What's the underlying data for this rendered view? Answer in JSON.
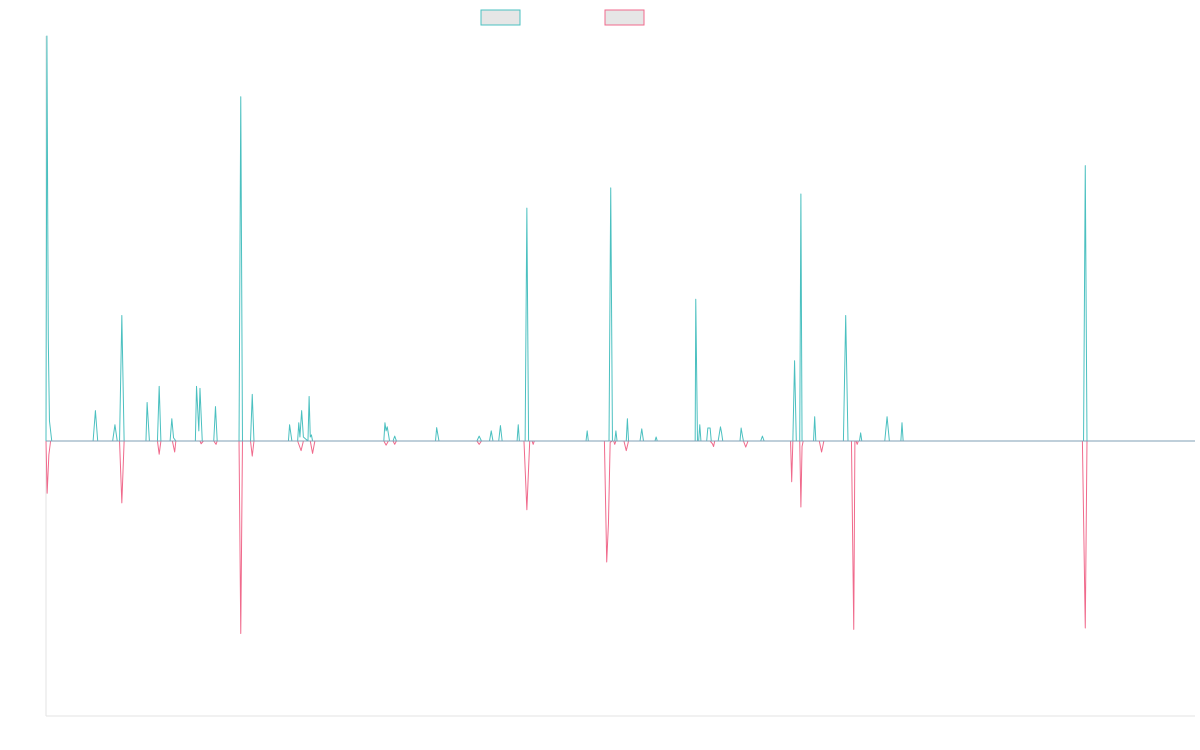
{
  "chart_data": {
    "type": "line",
    "title": "",
    "xlabel": "",
    "ylabel": "",
    "xlim": [
      0,
      1000
    ],
    "ylim": [
      -1.0,
      1.0
    ],
    "grid": false,
    "legend_position": "top-center",
    "series": [
      {
        "color": "#4bc0c0",
        "points": [
          [
            0,
            0
          ],
          [
            0.8,
            1.0
          ],
          [
            2,
            0.25
          ],
          [
            3,
            0.05
          ],
          [
            5,
            0
          ],
          [
            41,
            0
          ],
          [
            43,
            0.075
          ],
          [
            45,
            0
          ],
          [
            58,
            0
          ],
          [
            60,
            0.04
          ],
          [
            62,
            0
          ],
          [
            64,
            0
          ],
          [
            66,
            0.31
          ],
          [
            68,
            0
          ],
          [
            87,
            0
          ],
          [
            88,
            0.095
          ],
          [
            90,
            0
          ],
          [
            97,
            0
          ],
          [
            98.5,
            0.135
          ],
          [
            100,
            0
          ],
          [
            108,
            0
          ],
          [
            109.5,
            0.055
          ],
          [
            111,
            0.008
          ],
          [
            113,
            0
          ],
          [
            130,
            0
          ],
          [
            131,
            0.135
          ],
          [
            133,
            0.025
          ],
          [
            134,
            0.13
          ],
          [
            136,
            0
          ],
          [
            146,
            0
          ],
          [
            147.5,
            0.085
          ],
          [
            149,
            0
          ],
          [
            168,
            0
          ],
          [
            169.5,
            0.85
          ],
          [
            171,
            0
          ],
          [
            178,
            0
          ],
          [
            179.5,
            0.115
          ],
          [
            181,
            0
          ],
          [
            211,
            0
          ],
          [
            212,
            0.04
          ],
          [
            214,
            0
          ],
          [
            219,
            0
          ],
          [
            220,
            0.045
          ],
          [
            221,
            0.01
          ],
          [
            222.5,
            0.075
          ],
          [
            224,
            0.01
          ],
          [
            228,
            0
          ],
          [
            229,
            0.11
          ],
          [
            230,
            0.01
          ],
          [
            231,
            0.015
          ],
          [
            232,
            0
          ],
          [
            294,
            0
          ],
          [
            295,
            0.045
          ],
          [
            296,
            0.025
          ],
          [
            297,
            0.035
          ],
          [
            299,
            0
          ],
          [
            302,
            0
          ],
          [
            303.5,
            0.012
          ],
          [
            305,
            0
          ],
          [
            339,
            0
          ],
          [
            340,
            0.033
          ],
          [
            342,
            0
          ],
          [
            375,
            0
          ],
          [
            377,
            0.012
          ],
          [
            379,
            0
          ],
          [
            386,
            0
          ],
          [
            387.5,
            0.025
          ],
          [
            389,
            0
          ],
          [
            394,
            0
          ],
          [
            395.5,
            0.038
          ],
          [
            397,
            0
          ],
          [
            410,
            0
          ],
          [
            411,
            0.04
          ],
          [
            412,
            0
          ],
          [
            417,
            0
          ],
          [
            418.5,
            0.575
          ],
          [
            420,
            0
          ],
          [
            470,
            0
          ],
          [
            471,
            0.025
          ],
          [
            472,
            0
          ],
          [
            490,
            0
          ],
          [
            491.5,
            0.625
          ],
          [
            493,
            0
          ],
          [
            495,
            0
          ],
          [
            496,
            0.025
          ],
          [
            497,
            0
          ],
          [
            505,
            0
          ],
          [
            506,
            0.055
          ],
          [
            507,
            0
          ],
          [
            517,
            0
          ],
          [
            518.5,
            0.03
          ],
          [
            520,
            0
          ],
          [
            530,
            0
          ],
          [
            531,
            0.01
          ],
          [
            532,
            0
          ],
          [
            565,
            0
          ],
          [
            565.5,
            0.35
          ],
          [
            567,
            0
          ],
          [
            568,
            0
          ],
          [
            569,
            0.04
          ],
          [
            570,
            0
          ],
          [
            575,
            0
          ],
          [
            576,
            0.032
          ],
          [
            578,
            0.032
          ],
          [
            579,
            0
          ],
          [
            585,
            0
          ],
          [
            587,
            0.035
          ],
          [
            588,
            0.02
          ],
          [
            589,
            0
          ],
          [
            604,
            0
          ],
          [
            605,
            0.032
          ],
          [
            606,
            0.015
          ],
          [
            607,
            0
          ],
          [
            622,
            0
          ],
          [
            623.5,
            0.012
          ],
          [
            625,
            0
          ],
          [
            650,
            0
          ],
          [
            651.5,
            0.198
          ],
          [
            653,
            0
          ],
          [
            656,
            0
          ],
          [
            657,
            0.61
          ],
          [
            658,
            0
          ],
          [
            668,
            0
          ],
          [
            669,
            0.06
          ],
          [
            670,
            0
          ],
          [
            694,
            0
          ],
          [
            696,
            0.31
          ],
          [
            698,
            0
          ],
          [
            708,
            0
          ],
          [
            709,
            0.02
          ],
          [
            710,
            0
          ],
          [
            730,
            0
          ],
          [
            732,
            0.06
          ],
          [
            734,
            0
          ],
          [
            744,
            0
          ],
          [
            745,
            0.045
          ],
          [
            746,
            0
          ],
          [
            903,
            0
          ],
          [
            904.5,
            0.68
          ],
          [
            906,
            0
          ],
          [
            1000,
            0
          ]
        ]
      },
      {
        "color": "#f06a8c",
        "points": [
          [
            0,
            0
          ],
          [
            1,
            -0.19
          ],
          [
            2.5,
            -0.05
          ],
          [
            4,
            0
          ],
          [
            64,
            0
          ],
          [
            66,
            -0.225
          ],
          [
            68,
            0
          ],
          [
            97,
            0
          ],
          [
            98.5,
            -0.048
          ],
          [
            100,
            0
          ],
          [
            110,
            0
          ],
          [
            112,
            -0.04
          ],
          [
            113,
            0
          ],
          [
            134,
            0
          ],
          [
            135,
            -0.01
          ],
          [
            137,
            0
          ],
          [
            146,
            0
          ],
          [
            148,
            -0.012
          ],
          [
            149,
            0
          ],
          [
            168,
            0
          ],
          [
            169.5,
            -0.7
          ],
          [
            171,
            0
          ],
          [
            178,
            0
          ],
          [
            179.5,
            -0.055
          ],
          [
            181,
            0
          ],
          [
            219,
            0
          ],
          [
            222,
            -0.035
          ],
          [
            224,
            0
          ],
          [
            230,
            0
          ],
          [
            232,
            -0.045
          ],
          [
            234,
            0
          ],
          [
            294,
            0
          ],
          [
            296,
            -0.015
          ],
          [
            298,
            0
          ],
          [
            302,
            0
          ],
          [
            303.5,
            -0.012
          ],
          [
            305,
            0
          ],
          [
            375,
            0
          ],
          [
            377,
            -0.012
          ],
          [
            379,
            0
          ],
          [
            416,
            0
          ],
          [
            418.5,
            -0.25
          ],
          [
            421,
            0
          ],
          [
            423,
            0
          ],
          [
            424,
            -0.012
          ],
          [
            425,
            0
          ],
          [
            486,
            0
          ],
          [
            488,
            -0.44
          ],
          [
            489.5,
            -0.3
          ],
          [
            491,
            -0.005
          ],
          [
            493,
            0
          ],
          [
            494,
            0
          ],
          [
            495,
            -0.012
          ],
          [
            496,
            0
          ],
          [
            503,
            0
          ],
          [
            505,
            -0.035
          ],
          [
            507,
            0
          ],
          [
            578,
            0
          ],
          [
            580,
            -0.01
          ],
          [
            581,
            -0.02
          ],
          [
            582,
            0
          ],
          [
            607,
            0
          ],
          [
            609,
            -0.022
          ],
          [
            611,
            0
          ],
          [
            648,
            0
          ],
          [
            649,
            -0.148
          ],
          [
            650,
            0
          ],
          [
            656,
            0
          ],
          [
            657,
            -0.24
          ],
          [
            658,
            -0.02
          ],
          [
            659,
            0
          ],
          [
            673,
            0
          ],
          [
            675,
            -0.04
          ],
          [
            677,
            0
          ],
          [
            701,
            0
          ],
          [
            703,
            -0.685
          ],
          [
            704,
            0
          ],
          [
            705,
            0
          ],
          [
            706,
            -0.012
          ],
          [
            707,
            0
          ],
          [
            902,
            0
          ],
          [
            904.5,
            -0.68
          ],
          [
            906,
            0
          ],
          [
            1000,
            0
          ]
        ]
      }
    ]
  }
}
